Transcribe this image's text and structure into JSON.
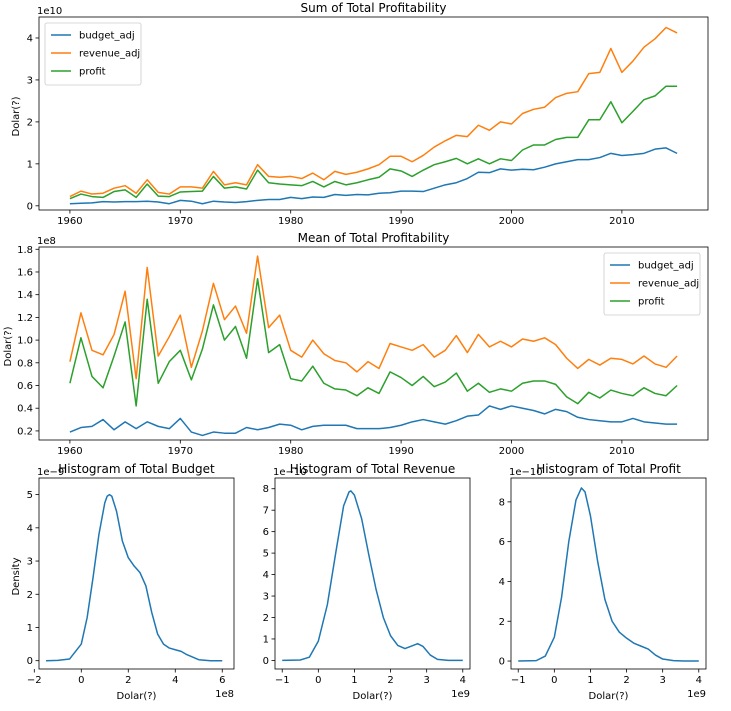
{
  "chart_data": [
    {
      "id": "sum",
      "type": "line",
      "title": "Sum of Total Profitability",
      "xlabel": "",
      "ylabel": "Dolar(?)",
      "scale_label": "1e10",
      "xlim": [
        1957.2,
        2017.8
      ],
      "ylim": [
        -0.1,
        4.5
      ],
      "xticks": [
        1960,
        1970,
        1980,
        1990,
        2000,
        2010
      ],
      "xtick_labels": [
        "1960",
        "1970",
        "1980",
        "1990",
        "2000",
        "2010"
      ],
      "yticks": [
        0,
        1,
        2,
        3,
        4
      ],
      "ytick_labels": [
        "0",
        "1",
        "2",
        "3",
        "4"
      ],
      "legend": "top-left",
      "x_start": 1960,
      "series": [
        {
          "name": "budget_adj",
          "color": "#1f77b4",
          "values": [
            0.05,
            0.06,
            0.07,
            0.1,
            0.09,
            0.1,
            0.1,
            0.11,
            0.09,
            0.05,
            0.13,
            0.11,
            0.05,
            0.11,
            0.09,
            0.08,
            0.1,
            0.13,
            0.15,
            0.15,
            0.2,
            0.17,
            0.21,
            0.2,
            0.27,
            0.25,
            0.27,
            0.26,
            0.3,
            0.31,
            0.35,
            0.35,
            0.34,
            0.42,
            0.5,
            0.55,
            0.65,
            0.8,
            0.79,
            0.88,
            0.85,
            0.87,
            0.86,
            0.92,
            1.0,
            1.05,
            1.1,
            1.1,
            1.15,
            1.25,
            1.2,
            1.22,
            1.25,
            1.35,
            1.38,
            1.25
          ]
        },
        {
          "name": "revenue_adj",
          "color": "#ff7f0e",
          "values": [
            0.22,
            0.35,
            0.28,
            0.3,
            0.42,
            0.48,
            0.3,
            0.62,
            0.32,
            0.28,
            0.45,
            0.45,
            0.42,
            0.82,
            0.5,
            0.55,
            0.5,
            0.98,
            0.7,
            0.68,
            0.7,
            0.65,
            0.78,
            0.62,
            0.82,
            0.75,
            0.8,
            0.88,
            0.98,
            1.18,
            1.18,
            1.05,
            1.2,
            1.4,
            1.55,
            1.68,
            1.65,
            1.92,
            1.8,
            2.0,
            1.95,
            2.2,
            2.3,
            2.35,
            2.58,
            2.68,
            2.72,
            3.15,
            3.18,
            3.75,
            3.18,
            3.45,
            3.78,
            3.98,
            4.25,
            4.12
          ]
        },
        {
          "name": "profit",
          "color": "#2ca02c",
          "values": [
            0.17,
            0.28,
            0.22,
            0.2,
            0.34,
            0.38,
            0.2,
            0.52,
            0.23,
            0.22,
            0.33,
            0.34,
            0.35,
            0.7,
            0.42,
            0.45,
            0.4,
            0.85,
            0.55,
            0.52,
            0.5,
            0.48,
            0.58,
            0.45,
            0.58,
            0.5,
            0.55,
            0.62,
            0.68,
            0.88,
            0.83,
            0.7,
            0.85,
            0.98,
            1.05,
            1.13,
            1.0,
            1.12,
            1.0,
            1.12,
            1.08,
            1.33,
            1.45,
            1.45,
            1.58,
            1.63,
            1.63,
            2.05,
            2.05,
            2.48,
            1.98,
            2.25,
            2.53,
            2.62,
            2.85,
            2.85
          ]
        }
      ]
    },
    {
      "id": "mean",
      "type": "line",
      "title": "Mean of Total Profitability",
      "xlabel": "",
      "ylabel": "Dolar(?)",
      "scale_label": "1e8",
      "xlim": [
        1957.2,
        2017.8
      ],
      "ylim": [
        0.12,
        1.82
      ],
      "xticks": [
        1960,
        1970,
        1980,
        1990,
        2000,
        2010
      ],
      "xtick_labels": [
        "1960",
        "1970",
        "1980",
        "1990",
        "2000",
        "2010"
      ],
      "yticks": [
        0.2,
        0.4,
        0.6,
        0.8,
        1.0,
        1.2,
        1.4,
        1.6,
        1.8
      ],
      "ytick_labels": [
        "0.2",
        "0.4",
        "0.6",
        "0.8",
        "1.0",
        "1.2",
        "1.4",
        "1.6",
        "1.8"
      ],
      "legend": "top-right",
      "x_start": 1960,
      "series": [
        {
          "name": "budget_adj",
          "color": "#1f77b4",
          "values": [
            0.19,
            0.23,
            0.24,
            0.3,
            0.21,
            0.28,
            0.22,
            0.28,
            0.24,
            0.22,
            0.31,
            0.19,
            0.16,
            0.19,
            0.18,
            0.18,
            0.23,
            0.21,
            0.23,
            0.26,
            0.25,
            0.21,
            0.24,
            0.25,
            0.25,
            0.25,
            0.22,
            0.22,
            0.22,
            0.23,
            0.25,
            0.28,
            0.3,
            0.28,
            0.26,
            0.29,
            0.33,
            0.34,
            0.42,
            0.39,
            0.42,
            0.4,
            0.38,
            0.35,
            0.39,
            0.37,
            0.32,
            0.3,
            0.29,
            0.28,
            0.28,
            0.31,
            0.28,
            0.27,
            0.26,
            0.26
          ]
        },
        {
          "name": "revenue_adj",
          "color": "#ff7f0e",
          "values": [
            0.81,
            1.24,
            0.91,
            0.87,
            1.05,
            1.43,
            0.66,
            1.64,
            0.86,
            1.03,
            1.22,
            0.76,
            1.08,
            1.5,
            1.18,
            1.3,
            1.06,
            1.74,
            1.11,
            1.22,
            0.91,
            0.85,
            1.0,
            0.88,
            0.82,
            0.8,
            0.72,
            0.81,
            0.75,
            0.97,
            0.94,
            0.91,
            0.96,
            0.85,
            0.91,
            1.04,
            0.89,
            1.05,
            0.94,
            0.99,
            0.94,
            1.01,
            0.99,
            1.02,
            0.96,
            0.84,
            0.75,
            0.83,
            0.78,
            0.84,
            0.83,
            0.79,
            0.86,
            0.79,
            0.76,
            0.86
          ]
        },
        {
          "name": "profit",
          "color": "#2ca02c",
          "values": [
            0.62,
            1.02,
            0.68,
            0.58,
            0.86,
            1.16,
            0.42,
            1.36,
            0.62,
            0.81,
            0.91,
            0.65,
            0.92,
            1.31,
            1.0,
            1.12,
            0.84,
            1.54,
            0.89,
            0.96,
            0.66,
            0.64,
            0.77,
            0.62,
            0.57,
            0.56,
            0.51,
            0.58,
            0.53,
            0.72,
            0.67,
            0.6,
            0.68,
            0.59,
            0.63,
            0.71,
            0.55,
            0.62,
            0.54,
            0.57,
            0.55,
            0.62,
            0.64,
            0.64,
            0.61,
            0.5,
            0.44,
            0.54,
            0.49,
            0.56,
            0.53,
            0.51,
            0.58,
            0.53,
            0.51,
            0.6
          ]
        }
      ]
    },
    {
      "id": "hist-budget",
      "type": "line",
      "title": "Histogram of Total Budget",
      "xlabel": "Dolar(?)",
      "ylabel": "Density",
      "scale_label": "1e−9",
      "xscale_label": "1e8",
      "xlim": [
        -1.8,
        6.5
      ],
      "ylim": [
        -0.25,
        5.5
      ],
      "xticks": [
        -2,
        0,
        2,
        4,
        6
      ],
      "xtick_labels": [
        "−2",
        "0",
        "2",
        "4",
        "6"
      ],
      "yticks": [
        0,
        1,
        2,
        3,
        4,
        5
      ],
      "ytick_labels": [
        "0",
        "1",
        "2",
        "3",
        "4",
        "5"
      ],
      "series": [
        {
          "name": "",
          "color": "#1f77b4",
          "x": [
            -1.5,
            -1.0,
            -0.5,
            0,
            0.25,
            0.5,
            0.75,
            1.0,
            1.1,
            1.2,
            1.3,
            1.5,
            1.75,
            2.0,
            2.25,
            2.5,
            2.75,
            3.0,
            3.25,
            3.5,
            3.75,
            4.0,
            4.25,
            4.5,
            5.0,
            5.5,
            6.0
          ],
          "values": [
            0.0,
            0.01,
            0.05,
            0.5,
            1.3,
            2.5,
            3.8,
            4.75,
            4.95,
            5.0,
            4.95,
            4.5,
            3.6,
            3.1,
            2.85,
            2.65,
            2.25,
            1.45,
            0.8,
            0.5,
            0.38,
            0.33,
            0.28,
            0.18,
            0.03,
            0.0,
            0.0
          ]
        }
      ]
    },
    {
      "id": "hist-revenue",
      "type": "line",
      "title": "Histogram of Total Revenue",
      "xlabel": "Dolar(?)",
      "ylabel": "",
      "scale_label": "1e−10",
      "xscale_label": "1e9",
      "xlim": [
        -1.2,
        4.2
      ],
      "ylim": [
        -0.4,
        8.5
      ],
      "xticks": [
        -1,
        0,
        1,
        2,
        3,
        4
      ],
      "xtick_labels": [
        "−1",
        "0",
        "1",
        "2",
        "3",
        "4"
      ],
      "yticks": [
        0,
        1,
        2,
        3,
        4,
        5,
        6,
        7,
        8
      ],
      "ytick_labels": [
        "0",
        "1",
        "2",
        "3",
        "4",
        "5",
        "6",
        "7",
        "8"
      ],
      "series": [
        {
          "name": "",
          "color": "#1f77b4",
          "x": [
            -1.0,
            -0.5,
            -0.25,
            0,
            0.25,
            0.5,
            0.7,
            0.85,
            0.9,
            1.0,
            1.2,
            1.4,
            1.6,
            1.8,
            2.0,
            2.2,
            2.4,
            2.6,
            2.75,
            2.9,
            3.1,
            3.3,
            3.6,
            4.0
          ],
          "values": [
            0.0,
            0.02,
            0.15,
            0.9,
            2.6,
            5.2,
            7.2,
            7.85,
            7.9,
            7.7,
            6.6,
            4.9,
            3.3,
            2.0,
            1.15,
            0.7,
            0.55,
            0.68,
            0.78,
            0.65,
            0.25,
            0.05,
            0.0,
            0.0
          ]
        }
      ]
    },
    {
      "id": "hist-profit",
      "type": "line",
      "title": "Histogram of Total Profit",
      "xlabel": "Dolar(?)",
      "ylabel": "",
      "scale_label": "1e−10",
      "xscale_label": "1e9",
      "xlim": [
        -1.2,
        4.2
      ],
      "ylim": [
        -0.4,
        9.2
      ],
      "xticks": [
        -1,
        0,
        1,
        2,
        3,
        4
      ],
      "xtick_labels": [
        "−1",
        "0",
        "1",
        "2",
        "3",
        "4"
      ],
      "yticks": [
        0,
        2,
        4,
        6,
        8
      ],
      "ytick_labels": [
        "0",
        "2",
        "4",
        "6",
        "8"
      ],
      "series": [
        {
          "name": "",
          "color": "#1f77b4",
          "x": [
            -1.0,
            -0.5,
            -0.25,
            0,
            0.2,
            0.4,
            0.6,
            0.75,
            0.85,
            1.0,
            1.2,
            1.4,
            1.6,
            1.8,
            2.0,
            2.2,
            2.4,
            2.6,
            2.8,
            3.0,
            3.3,
            3.6,
            4.0
          ],
          "values": [
            0.0,
            0.02,
            0.25,
            1.2,
            3.2,
            6.0,
            8.1,
            8.7,
            8.5,
            7.3,
            5.0,
            3.1,
            2.0,
            1.45,
            1.15,
            0.9,
            0.75,
            0.6,
            0.3,
            0.1,
            0.02,
            0.0,
            0.0
          ]
        }
      ]
    }
  ]
}
